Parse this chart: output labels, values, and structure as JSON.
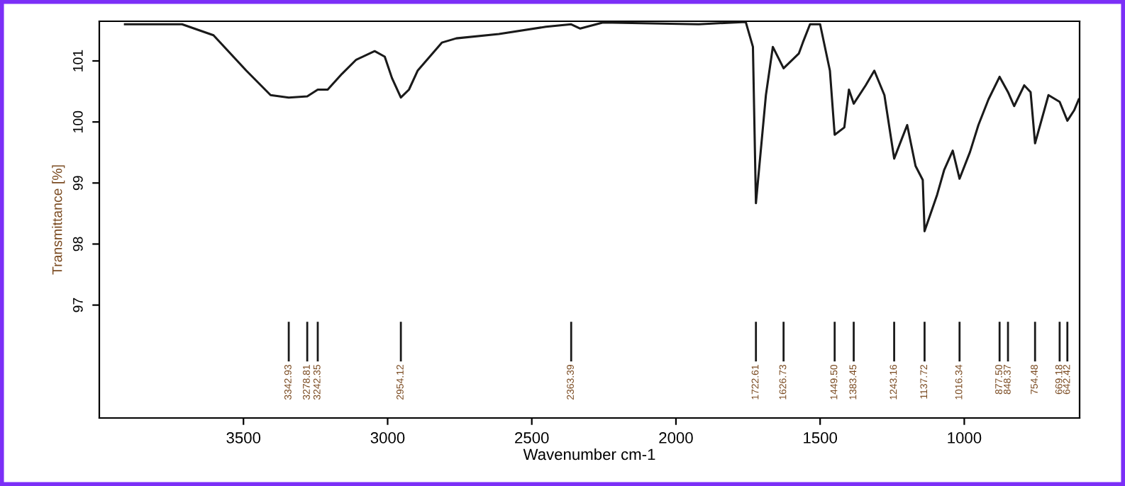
{
  "chart_data": {
    "type": "line",
    "xlabel": "Wavenumber cm-1",
    "ylabel": "Transmittance [%]",
    "x": [
      3911,
      3713,
      3604,
      3490,
      3406,
      3342.93,
      3278.81,
      3242.35,
      3208,
      3158,
      3109,
      3045,
      3010,
      2985,
      2954.12,
      2926,
      2896,
      2812,
      2762,
      2614,
      2451,
      2363.39,
      2332,
      2253,
      1921,
      1758,
      1733,
      1722.61,
      1688,
      1664,
      1626.73,
      1574,
      1560,
      1535,
      1500,
      1466,
      1449.5,
      1416,
      1400,
      1383.45,
      1342,
      1312,
      1277,
      1243.16,
      1198,
      1169,
      1144,
      1137.72,
      1094,
      1070,
      1040,
      1016.34,
      980,
      951,
      916,
      877.5,
      848.37,
      827,
      792,
      770,
      754.48,
      708,
      669.18,
      642.42,
      619,
      603
    ],
    "series": [
      {
        "color": "#1a1a1a",
        "values": [
          101.6,
          101.6,
          101.42,
          100.84,
          100.44,
          100.4,
          100.42,
          100.53,
          100.53,
          100.79,
          101.02,
          101.16,
          101.07,
          100.72,
          100.4,
          100.53,
          100.84,
          101.3,
          101.37,
          101.44,
          101.56,
          101.6,
          101.53,
          101.63,
          101.6,
          101.64,
          101.23,
          98.67,
          100.44,
          101.23,
          100.88,
          101.12,
          101.3,
          101.6,
          101.6,
          100.84,
          99.79,
          99.91,
          100.53,
          100.3,
          100.6,
          100.84,
          100.44,
          99.4,
          99.95,
          99.28,
          99.05,
          98.21,
          98.81,
          99.21,
          99.53,
          99.07,
          99.51,
          99.95,
          100.37,
          100.74,
          100.49,
          100.26,
          100.6,
          100.49,
          99.65,
          100.44,
          100.33,
          100.02,
          100.19,
          100.37
        ]
      }
    ],
    "xlim": [
      4000,
      600
    ],
    "ylim": [
      95.15,
      101.65
    ],
    "xticks": [
      3500,
      3000,
      2500,
      2000,
      1500,
      1000
    ],
    "yticks": [
      97,
      98,
      99,
      100,
      101
    ],
    "grid": false,
    "legend": false,
    "marker": "none",
    "line_style": "solid",
    "ref_lines": [
      {
        "axis": "x",
        "value": 3342.93,
        "label": "3342.93"
      },
      {
        "axis": "x",
        "value": 3278.81,
        "label": "3278.81"
      },
      {
        "axis": "x",
        "value": 3242.35,
        "label": "3242.35"
      },
      {
        "axis": "x",
        "value": 2954.12,
        "label": "2954.12"
      },
      {
        "axis": "x",
        "value": 2363.39,
        "label": "2363.39"
      },
      {
        "axis": "x",
        "value": 1722.61,
        "label": "1722.61"
      },
      {
        "axis": "x",
        "value": 1626.73,
        "label": "1626.73"
      },
      {
        "axis": "x",
        "value": 1449.5,
        "label": "1449.50"
      },
      {
        "axis": "x",
        "value": 1383.45,
        "label": "1383.45"
      },
      {
        "axis": "x",
        "value": 1243.16,
        "label": "1243.16"
      },
      {
        "axis": "x",
        "value": 1137.72,
        "label": "1137.72"
      },
      {
        "axis": "x",
        "value": 1016.34,
        "label": "1016.34"
      },
      {
        "axis": "x",
        "value": 877.5,
        "label": "877.50"
      },
      {
        "axis": "x",
        "value": 848.37,
        "label": "848.37"
      },
      {
        "axis": "x",
        "value": 754.48,
        "label": "754.48"
      },
      {
        "axis": "x",
        "value": 669.18,
        "label": "669.18"
      },
      {
        "axis": "x",
        "value": 642.42,
        "label": "642.42"
      }
    ]
  }
}
